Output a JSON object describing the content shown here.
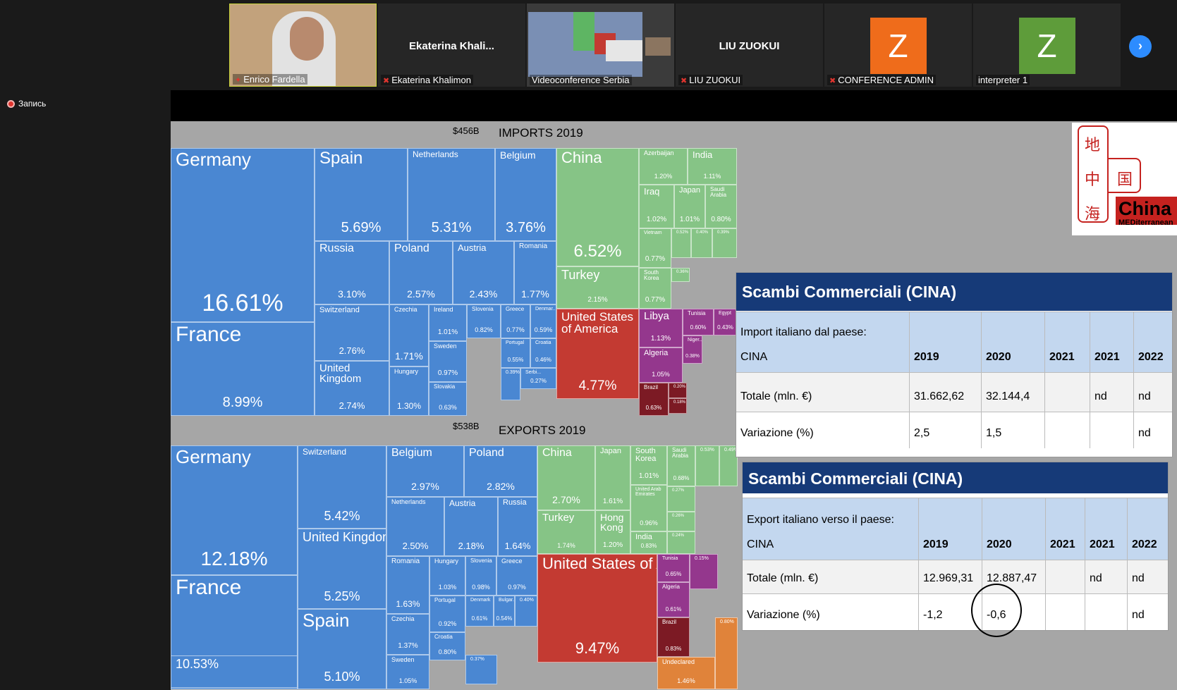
{
  "participants": [
    {
      "name": "Enrico Fardella",
      "type": "video"
    },
    {
      "name": "Ekaterina Khali...",
      "caption": "Ekaterina Khalimon",
      "muted": true
    },
    {
      "name": "Videoconference Serbia",
      "type": "screen"
    },
    {
      "name": "LIU ZUOKUI",
      "caption": "LIU ZUOKUI",
      "muted": true
    },
    {
      "avatar": "Z",
      "caption": "CONFERENCE ADMIN",
      "muted": true,
      "color": "#ef6c1b"
    },
    {
      "avatar": "Z",
      "caption": "interpreter 1",
      "color": "#5e9c3a"
    }
  ],
  "recording": "Запись",
  "imports": {
    "total": "$456B",
    "title": "IMPORTS 2019",
    "cells": [
      [
        "Germany",
        "16.61%"
      ],
      [
        "France",
        "8.99%"
      ],
      [
        "Spain",
        "5.69%"
      ],
      [
        "Netherlands",
        "5.31%"
      ],
      [
        "Belgium",
        "3.76%"
      ],
      [
        "Russia",
        "3.10%"
      ],
      [
        "Poland",
        "2.57%"
      ],
      [
        "Austria",
        "2.43%"
      ],
      [
        "Romania",
        "1.77%"
      ],
      [
        "Switzerland",
        "2.76%"
      ],
      [
        "United Kingdom",
        "2.74%"
      ],
      [
        "Czechia",
        "1.71%"
      ],
      [
        "Hungary",
        "1.30%"
      ],
      [
        "Ireland",
        "1.01%"
      ],
      [
        "Sweden",
        "0.97%"
      ],
      [
        "Slovakia",
        "0.63%"
      ],
      [
        "Slovenia",
        "0.82%"
      ],
      [
        "Greece",
        "0.77%"
      ],
      [
        "Denmar...",
        "0.59%"
      ],
      [
        "Portugal",
        "0.55%"
      ],
      [
        "Croatia",
        "0.46%"
      ],
      [
        "Serbi...",
        "0.27%"
      ],
      [
        "0.39%",
        ""
      ],
      [
        "China",
        "6.52%"
      ],
      [
        "Turkey",
        "2.15%"
      ],
      [
        "Azerbaijan",
        "1.20%"
      ],
      [
        "India",
        "1.11%"
      ],
      [
        "Iraq",
        "1.02%"
      ],
      [
        "Japan",
        "1.01%"
      ],
      [
        "Saudi Arabia",
        "0.80%"
      ],
      [
        "Vietnam",
        "0.77%"
      ],
      [
        "South Korea",
        "0.77%"
      ],
      [
        "0.36%",
        ""
      ],
      [
        "0.52%",
        ""
      ],
      [
        "0.40%",
        ""
      ],
      [
        "0.39%",
        ""
      ],
      [
        "United States of America",
        "4.77%"
      ],
      [
        "Libya",
        "1.13%"
      ],
      [
        "Algeria",
        "1.05%"
      ],
      [
        "Tunisia",
        "0.60%"
      ],
      [
        "Egypt",
        "0.43%"
      ],
      [
        "Niger...",
        "0.38%"
      ],
      [
        "Brazil",
        "0.63%"
      ],
      [
        "0.20%",
        ""
      ],
      [
        "0.18%",
        ""
      ]
    ]
  },
  "exports": {
    "total": "$538B",
    "title": "EXPORTS 2019",
    "cells": [
      [
        "Germany",
        "12.18%"
      ],
      [
        "France",
        ""
      ],
      [
        "Switzerland",
        "5.42%"
      ],
      [
        "United Kingdom",
        "5.25%"
      ],
      [
        "Spain",
        "5.10%"
      ],
      [
        "10.53%",
        ""
      ],
      [
        "Belgium",
        "2.97%"
      ],
      [
        "Poland",
        "2.82%"
      ],
      [
        "Netherlands",
        "2.50%"
      ],
      [
        "Austria",
        "2.18%"
      ],
      [
        "Russia",
        "1.64%"
      ],
      [
        "Romania",
        "1.63%"
      ],
      [
        "Hungary",
        "1.03%"
      ],
      [
        "Slovenia",
        "0.98%"
      ],
      [
        "Greece",
        "0.97%"
      ],
      [
        "Czechia",
        "1.37%"
      ],
      [
        "Portugal",
        "0.92%"
      ],
      [
        "Croatia",
        "0.80%"
      ],
      [
        "Sweden",
        "1.05%"
      ],
      [
        "Denmark",
        "0.61%"
      ],
      [
        "Bulgar...",
        "0.54%"
      ],
      [
        "0.40%",
        ""
      ],
      [
        "0.37%",
        ""
      ],
      [
        "China",
        "2.70%"
      ],
      [
        "Japan",
        "1.61%"
      ],
      [
        "South Korea",
        "1.01%"
      ],
      [
        "Saudi Arabia",
        "0.68%"
      ],
      [
        "0.53%",
        ""
      ],
      [
        "0.49%",
        ""
      ],
      [
        "Turkey",
        "1.74%"
      ],
      [
        "Hong Kong",
        "1.20%"
      ],
      [
        "United Arab Emirates",
        "0.96%"
      ],
      [
        "0.27%",
        ""
      ],
      [
        "0.26%",
        ""
      ],
      [
        "India",
        "0.83%"
      ],
      [
        "0.24%",
        ""
      ],
      [
        "United States of America",
        "9.47%"
      ],
      [
        "Tunisia",
        "0.65%"
      ],
      [
        "Algeria",
        "0.61%"
      ],
      [
        "0.15%",
        ""
      ],
      [
        "Brazil",
        "0.83%"
      ],
      [
        "Undeclared",
        "1.46%"
      ],
      [
        "0.80%",
        ""
      ]
    ]
  },
  "import_table": {
    "title": "Scambi Commerciali (CINA)",
    "sub": "Import italiano dal paese:",
    "country": "CINA",
    "years": [
      "2019",
      "2020",
      "2021",
      "2021",
      "2022"
    ],
    "rows": [
      [
        "Totale (mln. €)",
        "31.662,62",
        "32.144,4",
        "",
        "nd",
        "nd"
      ],
      [
        "Variazione (%)",
        "2,5",
        "1,5",
        "",
        "",
        "nd"
      ]
    ]
  },
  "export_table": {
    "title": "Scambi Commerciali (CINA)",
    "sub": "Export italiano verso il paese:",
    "country": "CINA",
    "years": [
      "2019",
      "2020",
      "2021",
      "2021",
      "2022"
    ],
    "rows": [
      [
        "Totale (mln. €)",
        "12.969,31",
        "12.887,47",
        "",
        "nd",
        "nd"
      ],
      [
        "Variazione (%)",
        "-1,2",
        "-0,6",
        "",
        "",
        "nd"
      ]
    ]
  },
  "logo": {
    "chars": [
      "地",
      "中",
      "国",
      "海"
    ],
    "brand": "China",
    "sub": "MEDiterranean"
  }
}
